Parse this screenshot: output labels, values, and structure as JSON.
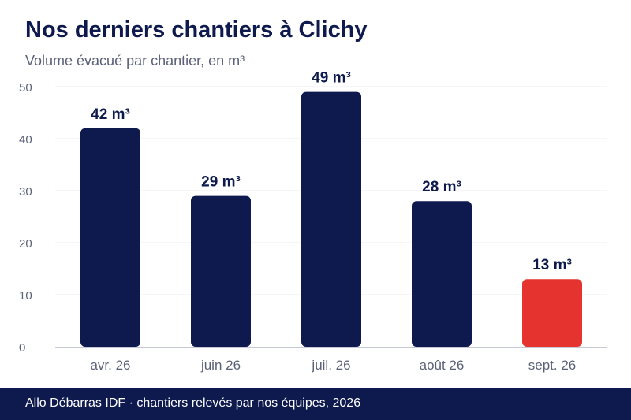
{
  "chart_data": {
    "type": "bar",
    "title": "Nos derniers chantiers à Clichy",
    "subtitle": "Volume évacué par chantier, en m³",
    "categories": [
      "avr. 26",
      "juin 26",
      "juil. 26",
      "août 26",
      "sept. 26"
    ],
    "values": [
      42,
      29,
      49,
      28,
      13
    ],
    "value_labels": [
      "42 m³",
      "29 m³",
      "49 m³",
      "28 m³",
      "13 m³"
    ],
    "ylim": [
      0,
      50
    ],
    "yticks": [
      "0",
      "10",
      "20",
      "30",
      "40",
      "50"
    ],
    "grid": true,
    "legend": "none",
    "colors": {
      "bar": "#0e1a4d",
      "highlight": "#e53430",
      "highlight_index": 4
    }
  },
  "footer": {
    "text": "Allo Débarras IDF · chantiers relevés par nos équipes, 2026"
  }
}
